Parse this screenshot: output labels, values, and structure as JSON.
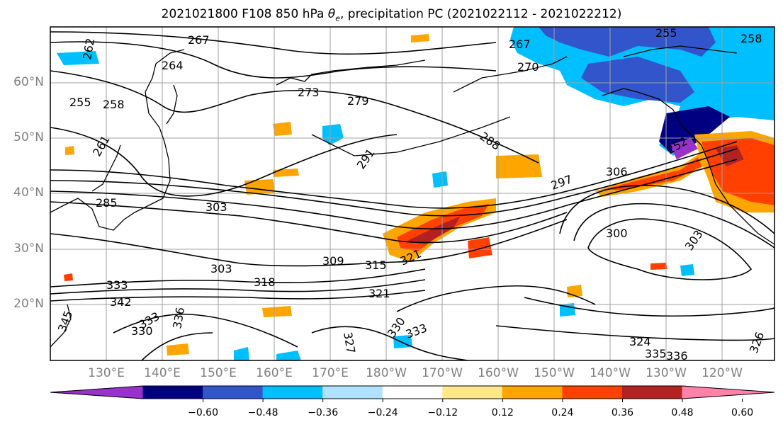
{
  "title_prefix": "2021021800 F108 850 hPa ",
  "title_symbol": "θ",
  "title_symbol_sub": "e",
  "title_suffix": ", precipitation PC (2021022112 - 2021022212)",
  "lat_labels": [
    "60°N",
    "50°N",
    "40°N",
    "30°N",
    "20°N"
  ],
  "lon_labels": [
    "130°E",
    "140°E",
    "150°E",
    "160°E",
    "170°E",
    "180°W",
    "170°W",
    "160°W",
    "150°W",
    "140°W",
    "130°W",
    "120°W"
  ],
  "colorbar": {
    "colors": [
      "#9932cc",
      "#000080",
      "#3355cc",
      "#00bfff",
      "#b0e2ff",
      "#ffffff",
      "#ffe88a",
      "#ffa500",
      "#ff4000",
      "#b22222",
      "#ff82ab"
    ],
    "tick_labels": [
      "−0.60",
      "−0.48",
      "−0.36",
      "−0.24",
      "−0.12",
      "0.12",
      "0.24",
      "0.36",
      "0.48",
      "0.60"
    ]
  },
  "contour_labels": [
    "267",
    "264",
    "262",
    "255",
    "258",
    "261",
    "273",
    "279",
    "270",
    "267",
    "255",
    "258",
    "288",
    "291",
    "297",
    "306",
    "303",
    "300",
    "303",
    "309",
    "315",
    "318",
    "321",
    "321",
    "303",
    "333",
    "342",
    "345",
    "336",
    "333",
    "330",
    "327",
    "330",
    "333",
    "324",
    "335",
    "336",
    "326",
    "285",
    "252"
  ]
}
